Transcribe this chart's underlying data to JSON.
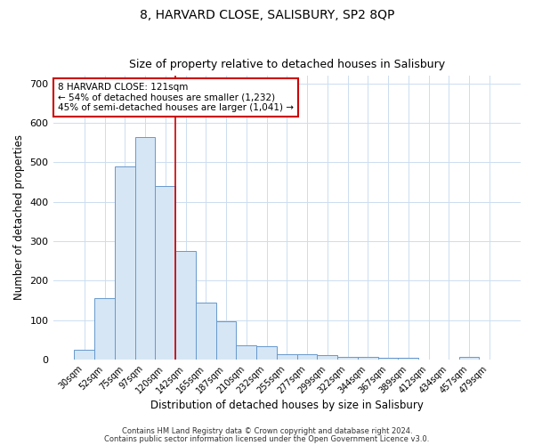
{
  "title": "8, HARVARD CLOSE, SALISBURY, SP2 8QP",
  "subtitle": "Size of property relative to detached houses in Salisbury",
  "xlabel": "Distribution of detached houses by size in Salisbury",
  "ylabel": "Number of detached properties",
  "bar_color": "#d6e6f5",
  "bar_edge_color": "#6699cc",
  "bg_color": "#ffffff",
  "grid_color": "#ccddf0",
  "categories": [
    "30sqm",
    "52sqm",
    "75sqm",
    "97sqm",
    "120sqm",
    "142sqm",
    "165sqm",
    "187sqm",
    "210sqm",
    "232sqm",
    "255sqm",
    "277sqm",
    "299sqm",
    "322sqm",
    "344sqm",
    "367sqm",
    "389sqm",
    "412sqm",
    "434sqm",
    "457sqm",
    "479sqm"
  ],
  "values": [
    25,
    155,
    490,
    565,
    440,
    275,
    145,
    97,
    36,
    33,
    14,
    14,
    11,
    7,
    6,
    4,
    4,
    0,
    0,
    6,
    0
  ],
  "vline_x_index": 4,
  "vline_color": "#cc0000",
  "annotation_line1": "8 HARVARD CLOSE: 121sqm",
  "annotation_line2": "← 54% of detached houses are smaller (1,232)",
  "annotation_line3": "45% of semi-detached houses are larger (1,041) →",
  "annotation_box_color": "#ffffff",
  "annotation_border_color": "#cc0000",
  "ylim": [
    0,
    720
  ],
  "yticks": [
    0,
    100,
    200,
    300,
    400,
    500,
    600,
    700
  ],
  "footnote1": "Contains HM Land Registry data © Crown copyright and database right 2024.",
  "footnote2": "Contains public sector information licensed under the Open Government Licence v3.0."
}
